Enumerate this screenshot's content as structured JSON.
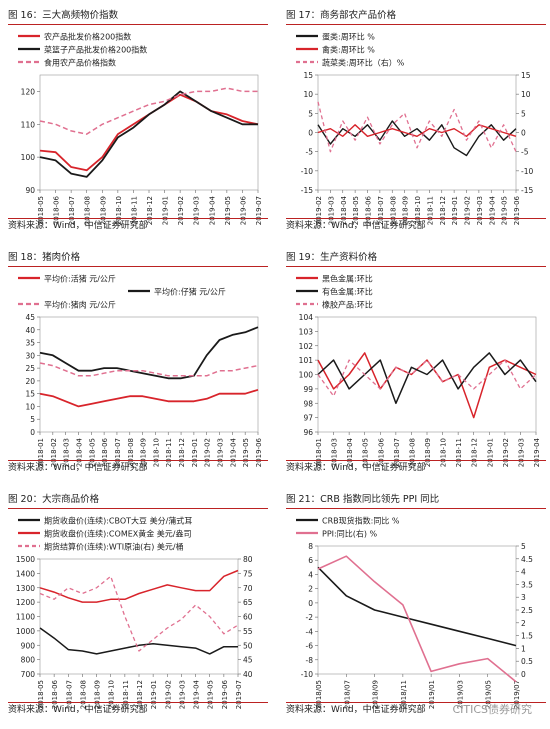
{
  "panels": [
    {
      "title": "图 16：三大高频物价指数",
      "source": "资料来源：Wind，中信证券研究部",
      "chart_data": {
        "type": "line",
        "x": [
          "2018-05",
          "2018-06",
          "2018-07",
          "2018-08",
          "2018-09",
          "2018-10",
          "2018-11",
          "2018-12",
          "2019-01",
          "2019-02",
          "2019-03",
          "2019-04",
          "2019-05",
          "2019-06",
          "2019-07"
        ],
        "ylim": [
          90,
          125
        ],
        "yticks": [
          90,
          100,
          110,
          120
        ],
        "yaxis_right": false,
        "series": [
          {
            "name": "农产品批发价格200指数",
            "color": "#d8242b",
            "width": 1.8,
            "dash": "",
            "axis": "left",
            "values": [
              102,
              101.5,
              97,
              96,
              100,
              107,
              110,
              113,
              116,
              119,
              117,
              114,
              113,
              111,
              110
            ]
          },
          {
            "name": "菜篮子产品批发价格200指数",
            "color": "#1a1a1a",
            "width": 1.8,
            "dash": "",
            "axis": "left",
            "values": [
              100,
              99,
              95,
              94,
              99,
              106,
              109,
              113,
              116,
              120,
              117,
              114,
              112,
              110,
              110
            ]
          },
          {
            "name": "食用农产品价格指数",
            "color": "#e07090",
            "width": 1.5,
            "dash": "5,3",
            "axis": "left",
            "values": [
              111,
              110,
              108,
              107,
              110,
              112,
              114,
              116,
              117,
              119,
              120,
              120,
              121,
              120,
              120
            ]
          }
        ]
      }
    },
    {
      "title": "图 17：商务部农产品价格",
      "source": "资料来源：Wind，中信证券研究部",
      "chart_data": {
        "type": "line",
        "x": [
          "2019-02",
          "2019-03",
          "2018-04",
          "2018-05",
          "2018-06",
          "2018-07",
          "2018-08",
          "2018-09",
          "2018-10",
          "2018-11",
          "2018-12",
          "2019-01",
          "2019-02",
          "2019-03",
          "2019-04",
          "2019-05",
          "2019-06"
        ],
        "ylim": [
          -15,
          15
        ],
        "yticks": [
          -15,
          -10,
          -5,
          0,
          5,
          10,
          15
        ],
        "yaxis_right": true,
        "ylim_right": [
          -15,
          15
        ],
        "yticks_right": [
          -15,
          -10,
          -5,
          0,
          5,
          10,
          15
        ],
        "series": [
          {
            "name": "蛋类:周环比 %",
            "color": "#1a1a1a",
            "width": 1.4,
            "dash": "",
            "axis": "left",
            "values": [
              2,
              -3,
              1,
              -1,
              2,
              -2,
              3,
              -1,
              1,
              -2,
              2,
              -4,
              -6,
              -1,
              2,
              -2,
              1
            ]
          },
          {
            "name": "禽类:周环比 %",
            "color": "#d8242b",
            "width": 1.4,
            "dash": "",
            "axis": "left",
            "values": [
              0,
              1,
              -1,
              2,
              -1,
              0,
              1,
              0,
              -1,
              1,
              0,
              1,
              -1,
              2,
              1,
              0,
              -1
            ]
          },
          {
            "name": "蔬菜类:周环比（右）%",
            "color": "#e07090",
            "width": 1.3,
            "dash": "4,3",
            "axis": "right",
            "values": [
              8,
              -5,
              3,
              -2,
              4,
              -3,
              2,
              5,
              -4,
              3,
              -1,
              6,
              -2,
              3,
              -4,
              2,
              -5
            ]
          }
        ]
      }
    },
    {
      "title": "图 18：猪肉价格",
      "source": "资料来源：Wind，中信证券研究部",
      "chart_data": {
        "type": "line",
        "x": [
          "2018-01",
          "2018-02",
          "2018-03",
          "2018-04",
          "2018-05",
          "2018-06",
          "2018-07",
          "2018-08",
          "2018-09",
          "2018-10",
          "2018-11",
          "2018-12",
          "2019-01",
          "2019-02",
          "2019-03",
          "2019-04",
          "2019-05",
          "2019-06"
        ],
        "ylim": [
          0,
          45
        ],
        "yticks": [
          0,
          5,
          10,
          15,
          20,
          25,
          30,
          35,
          40,
          45
        ],
        "yaxis_right": false,
        "series": [
          {
            "name": "平均价:活猪 元/公斤",
            "color": "#d8242b",
            "width": 1.8,
            "dash": "",
            "axis": "left",
            "values": [
              15,
              14,
              12,
              10,
              11,
              12,
              13,
              14,
              14,
              13,
              12,
              12,
              12,
              13,
              15,
              15,
              15,
              16.5
            ]
          },
          {
            "name": "平均价:仔猪 元/公斤",
            "color": "#1a1a1a",
            "width": 1.8,
            "dash": "",
            "axis": "left",
            "values": [
              31,
              30,
              27,
              24,
              24,
              25,
              25,
              24,
              23,
              22,
              21,
              21,
              22,
              30,
              36,
              38,
              39,
              41
            ]
          },
          {
            "name": "平均价:猪肉 元/公斤",
            "color": "#e07090",
            "width": 1.5,
            "dash": "5,3",
            "axis": "left",
            "values": [
              27,
              26,
              24,
              22,
              22,
              23,
              24,
              24,
              24,
              23,
              22,
              22,
              22,
              22,
              24,
              24,
              25,
              26
            ]
          }
        ]
      }
    },
    {
      "title": "图 19：生产资料价格",
      "source": "资料来源：Wind，中信证券研究部",
      "chart_data": {
        "type": "line",
        "x": [
          "2018-01",
          "2018-03",
          "2018-04",
          "2018-05",
          "2018-06",
          "2018-07",
          "2018-08",
          "2018-09",
          "2018-10",
          "2018-11",
          "2018-12",
          "2019-01",
          "2019-02",
          "2019-03",
          "2019-04"
        ],
        "ylim": [
          96,
          104
        ],
        "yticks": [
          96,
          97,
          98,
          99,
          100,
          101,
          102,
          103,
          104
        ],
        "yaxis_right": false,
        "series": [
          {
            "name": "黑色金属:环比",
            "color": "#d8242b",
            "width": 1.5,
            "dash": "",
            "axis": "left",
            "values": [
              101,
              99,
              100,
              101.5,
              99,
              100.5,
              100,
              101,
              99.5,
              100,
              97,
              100.5,
              101,
              100.5,
              100
            ]
          },
          {
            "name": "有色金属:环比",
            "color": "#1a1a1a",
            "width": 1.5,
            "dash": "",
            "axis": "left",
            "values": [
              100,
              101,
              99,
              100,
              101,
              98,
              100.5,
              100,
              101,
              99,
              100.5,
              101.5,
              100,
              101,
              99.5
            ]
          },
          {
            "name": "橡胶产品:环比",
            "color": "#e07090",
            "width": 1.3,
            "dash": "4,3",
            "axis": "left",
            "values": [
              100,
              98.5,
              101,
              100,
              99,
              100.5,
              100,
              101,
              99.5,
              100,
              99,
              100,
              101,
              99,
              100
            ]
          }
        ]
      }
    },
    {
      "title": "图 20：大宗商品价格",
      "source": "资料来源：Wind，中信证券研究部",
      "chart_data": {
        "type": "line",
        "x": [
          "2018-05",
          "2018-06",
          "2018-07",
          "2018-08",
          "2018-09",
          "2018-10",
          "2018-11",
          "2018-12",
          "2019-01",
          "2019-02",
          "2019-03",
          "2019-04",
          "2019-05",
          "2019-06",
          "2019-07"
        ],
        "ylim": [
          700,
          1500
        ],
        "yticks": [
          700,
          800,
          900,
          1000,
          1100,
          1200,
          1300,
          1400,
          1500
        ],
        "yaxis_right": true,
        "ylim_right": [
          40,
          80
        ],
        "yticks_right": [
          40,
          45,
          50,
          55,
          60,
          65,
          70,
          75,
          80
        ],
        "series": [
          {
            "name": "期货收盘价(连续):CBOT大豆 美分/蒲式耳",
            "color": "#1a1a1a",
            "width": 1.5,
            "dash": "",
            "axis": "left",
            "values": [
              1020,
              950,
              870,
              860,
              840,
              860,
              880,
              900,
              910,
              900,
              890,
              880,
              840,
              890,
              890
            ]
          },
          {
            "name": "期货收盘价(连续):COMEX黄金 美元/盎司",
            "color": "#d8242b",
            "width": 1.5,
            "dash": "",
            "axis": "left",
            "values": [
              1300,
              1270,
              1230,
              1200,
              1200,
              1220,
              1220,
              1260,
              1290,
              1320,
              1300,
              1280,
              1280,
              1380,
              1420
            ]
          },
          {
            "name": "期货结算价(连续):WTI原油(右) 美元/桶",
            "color": "#e07090",
            "width": 1.3,
            "dash": "4,3",
            "axis": "right",
            "values": [
              68,
              66,
              70,
              68,
              70,
              74,
              60,
              48,
              52,
              56,
              59,
              64,
              60,
              54,
              57
            ]
          }
        ]
      }
    },
    {
      "title": "图 21：CRB 指数同比领先 PPI 同比",
      "source": "资料来源：Wind，中信证券研究部",
      "chart_data": {
        "type": "line",
        "x": [
          "2018/05",
          "2018/07",
          "2018/09",
          "2018/11",
          "2019/01",
          "2019/03",
          "2019/05",
          "2019/07"
        ],
        "ylim": [
          -10,
          8
        ],
        "yticks": [
          -10,
          -8,
          -6,
          -4,
          -2,
          0,
          2,
          4,
          6,
          8
        ],
        "yaxis_right": true,
        "ylim_right": [
          0,
          5
        ],
        "yticks_right": [
          0,
          0.5,
          1,
          1.5,
          2,
          2.5,
          3,
          3.5,
          4,
          4.5,
          5
        ],
        "series": [
          {
            "name": "CRB现货指数:同比 %",
            "color": "#1a1a1a",
            "width": 1.6,
            "dash": "",
            "axis": "left",
            "values": [
              5,
              1,
              -1,
              -2,
              -3,
              -4,
              -5,
              -6
            ]
          },
          {
            "name": "PPI:同比(右) %",
            "color": "#e07090",
            "width": 1.6,
            "dash": "",
            "axis": "right",
            "values": [
              4.1,
              4.6,
              3.6,
              2.7,
              0.1,
              0.4,
              0.6,
              -0.3
            ]
          }
        ]
      }
    }
  ],
  "watermark": "CITICS债券研究"
}
